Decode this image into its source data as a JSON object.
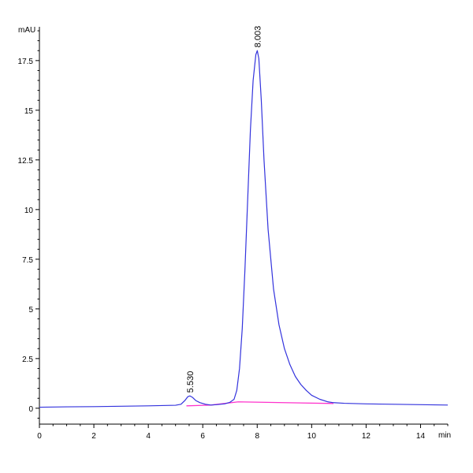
{
  "chart_data": {
    "type": "line",
    "title": "",
    "xlabel": "min",
    "ylabel": "mAU",
    "xlim": [
      0,
      15
    ],
    "ylim": [
      -0.8,
      19.2
    ],
    "x_ticks": [
      0,
      2,
      4,
      6,
      8,
      10,
      12,
      14
    ],
    "x_tick_labels": [
      "0",
      "2",
      "4",
      "6",
      "8",
      "10",
      "12",
      "14"
    ],
    "y_ticks": [
      0,
      2.5,
      5,
      7.5,
      10,
      12.5,
      15,
      17.5
    ],
    "y_tick_labels": [
      "0",
      "2.5",
      "5",
      "7.5",
      "10",
      "12.5",
      "15",
      "17.5"
    ],
    "grid": false,
    "colors": {
      "signal": "#3333dd",
      "baseline": "#ff33cc",
      "axis": "#000000"
    },
    "series": [
      {
        "x": [
          0.0,
          1.0,
          2.0,
          3.0,
          4.0,
          5.0,
          5.2,
          5.35,
          5.45,
          5.53,
          5.62,
          5.75,
          5.9,
          6.1,
          6.3,
          6.5,
          6.8,
          7.0,
          7.15,
          7.25,
          7.35,
          7.45,
          7.55,
          7.65,
          7.75,
          7.85,
          7.95,
          8.003,
          8.06,
          8.15,
          8.25,
          8.4,
          8.6,
          8.8,
          9.0,
          9.2,
          9.4,
          9.6,
          9.8,
          10.0,
          10.3,
          10.6,
          10.8,
          11.2,
          12.0,
          13.0,
          14.0,
          15.0
        ],
        "y": [
          0.05,
          0.07,
          0.08,
          0.1,
          0.12,
          0.15,
          0.2,
          0.4,
          0.58,
          0.62,
          0.55,
          0.38,
          0.28,
          0.2,
          0.16,
          0.18,
          0.22,
          0.3,
          0.45,
          0.9,
          2.0,
          4.0,
          7.0,
          10.5,
          14.0,
          16.5,
          17.8,
          18.0,
          17.6,
          15.5,
          12.5,
          9.0,
          6.0,
          4.2,
          3.0,
          2.2,
          1.6,
          1.2,
          0.9,
          0.65,
          0.45,
          0.32,
          0.28,
          0.25,
          0.22,
          0.2,
          0.18,
          0.16
        ]
      },
      {
        "x": [
          5.4,
          6.3,
          7.3,
          10.8
        ],
        "y": [
          0.12,
          0.16,
          0.32,
          0.24
        ]
      }
    ],
    "peak_labels": [
      {
        "x": 5.53,
        "y": 0.62,
        "text": "5.530"
      },
      {
        "x": 8.003,
        "y": 18.0,
        "text": "8.003"
      }
    ]
  }
}
